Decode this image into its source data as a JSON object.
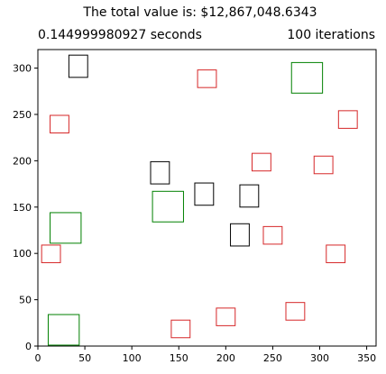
{
  "title": "The total value is: $12,867,048.6343",
  "subtitle_left": "0.144999980927 seconds",
  "subtitle_right": "100 iterations",
  "chart_data": {
    "type": "scatter",
    "title": "The total value is: $12,867,048.6343",
    "xlabel": "",
    "ylabel": "",
    "xlim": [
      0,
      360
    ],
    "ylim": [
      0,
      320
    ],
    "xticks": [
      0,
      50,
      100,
      150,
      200,
      250,
      300,
      350
    ],
    "yticks": [
      0,
      50,
      100,
      150,
      200,
      250,
      300
    ],
    "grid": false,
    "marker": "square (unfilled)",
    "colors": {
      "black": "#000000",
      "red": "#d62728",
      "green": "#008000"
    },
    "series": [
      {
        "name": "black",
        "color": "#000000",
        "boxes": [
          {
            "x": 33,
            "y": 290,
            "w": 20,
            "h": 24
          },
          {
            "x": 120,
            "y": 175,
            "w": 20,
            "h": 24
          },
          {
            "x": 167,
            "y": 152,
            "w": 20,
            "h": 24
          },
          {
            "x": 205,
            "y": 108,
            "w": 20,
            "h": 24
          },
          {
            "x": 215,
            "y": 150,
            "w": 20,
            "h": 24
          }
        ]
      },
      {
        "name": "red",
        "color": "#d62728",
        "boxes": [
          {
            "x": 170,
            "y": 279,
            "w": 20,
            "h": 19
          },
          {
            "x": 13,
            "y": 230,
            "w": 20,
            "h": 19
          },
          {
            "x": 320,
            "y": 235,
            "w": 20,
            "h": 19
          },
          {
            "x": 228,
            "y": 189,
            "w": 20,
            "h": 19
          },
          {
            "x": 294,
            "y": 186,
            "w": 20,
            "h": 19
          },
          {
            "x": 240,
            "y": 110,
            "w": 20,
            "h": 19
          },
          {
            "x": 4,
            "y": 90,
            "w": 20,
            "h": 19
          },
          {
            "x": 307,
            "y": 90,
            "w": 20,
            "h": 19
          },
          {
            "x": 264,
            "y": 28,
            "w": 20,
            "h": 19
          },
          {
            "x": 190,
            "y": 22,
            "w": 20,
            "h": 19
          },
          {
            "x": 142,
            "y": 9,
            "w": 20,
            "h": 19
          }
        ]
      },
      {
        "name": "green",
        "color": "#008000",
        "boxes": [
          {
            "x": 270,
            "y": 273,
            "w": 33,
            "h": 33
          },
          {
            "x": 122,
            "y": 134,
            "w": 33,
            "h": 33
          },
          {
            "x": 13,
            "y": 111,
            "w": 33,
            "h": 33
          },
          {
            "x": 11,
            "y": 1,
            "w": 33,
            "h": 33
          }
        ]
      }
    ]
  }
}
